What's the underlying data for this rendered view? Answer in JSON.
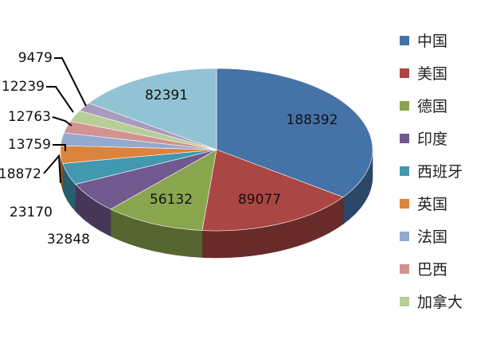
{
  "chart_data": {
    "type": "pie",
    "title": "",
    "legend_position": "right",
    "three_d": true,
    "slices": [
      {
        "label": "中国",
        "value": 188392,
        "color": "#4572a7"
      },
      {
        "label": "美国",
        "value": 89077,
        "color": "#aa4643"
      },
      {
        "label": "德国",
        "value": 56132,
        "color": "#89a54e"
      },
      {
        "label": "印度",
        "value": 32848,
        "color": "#71588f"
      },
      {
        "label": "西班牙",
        "value": 23170,
        "color": "#4198af"
      },
      {
        "label": "英国",
        "value": 18872,
        "color": "#db843d"
      },
      {
        "label": "法国",
        "value": 13759,
        "color": "#93a9cf"
      },
      {
        "label": "巴西",
        "value": 12763,
        "color": "#d19392"
      },
      {
        "label": "加拿大",
        "value": 12239,
        "color": "#b9cd96"
      },
      {
        "value": 9479,
        "color": "#a99bbd"
      },
      {
        "value": 82391,
        "color": "#92c3d4"
      }
    ]
  }
}
